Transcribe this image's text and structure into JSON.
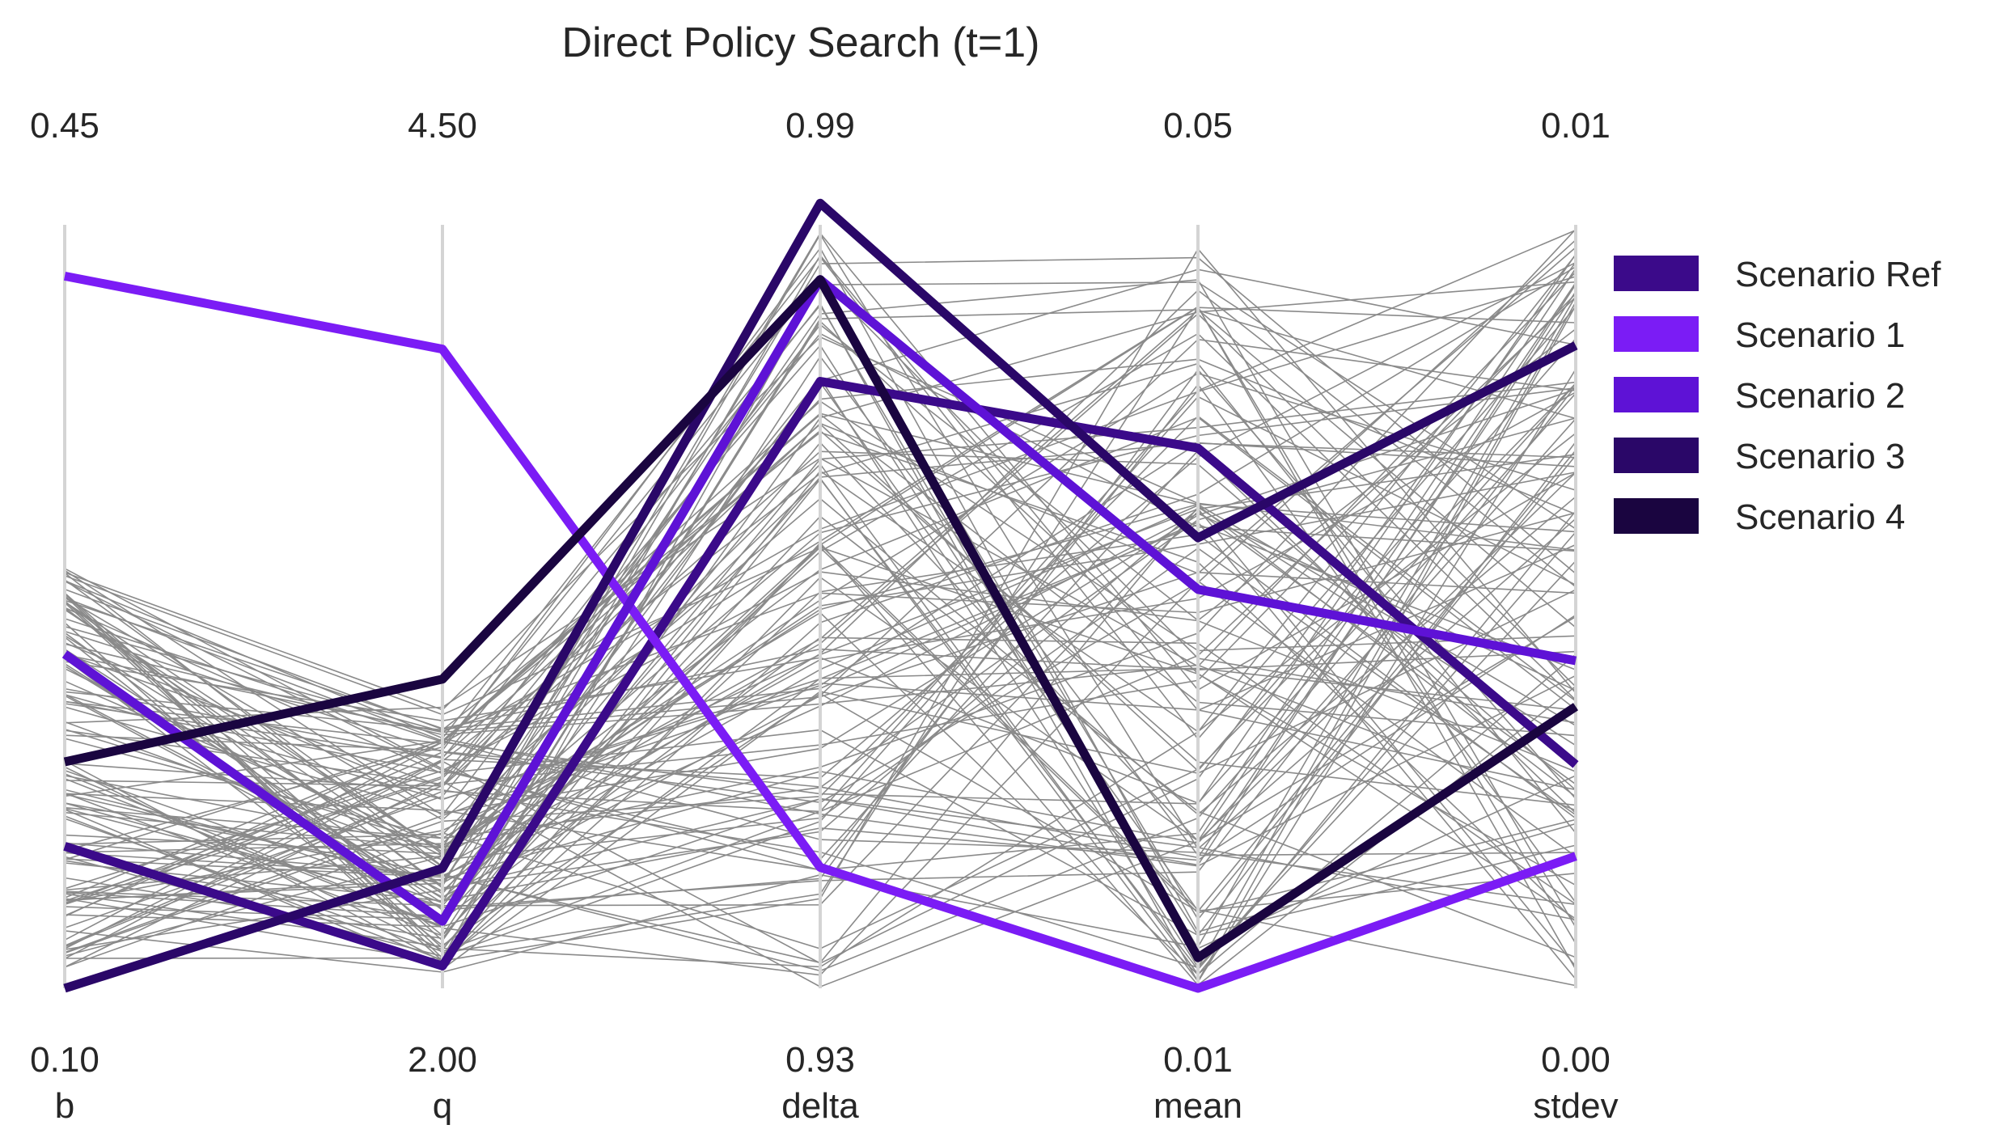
{
  "chart_data": {
    "type": "parallel_coordinates",
    "title": "Direct Policy Search (t=1)",
    "axes": [
      {
        "name": "b",
        "min": "0.10",
        "max": "0.45",
        "lo": 0.1,
        "hi": 0.45
      },
      {
        "name": "q",
        "min": "2.00",
        "max": "4.50",
        "lo": 2.0,
        "hi": 4.5
      },
      {
        "name": "delta",
        "min": "0.93",
        "max": "0.99",
        "lo": 0.93,
        "hi": 0.99
      },
      {
        "name": "mean",
        "min": "0.01",
        "max": "0.05",
        "lo": 0.01,
        "hi": 0.05
      },
      {
        "name": "stdev",
        "min": "0.00",
        "max": "0.01",
        "lo": 0.0,
        "hi": 0.01
      }
    ],
    "grid": false,
    "legend_position": "right",
    "background_color": "#8a8a8a",
    "highlighted": [
      {
        "name": "Scenario Ref",
        "color": "#3b0a8a",
        "values": [
          0.1651,
          2.0731,
          0.9777,
          0.0383,
          0.00293
        ]
      },
      {
        "name": "Scenario 1",
        "color": "#7b1cf5",
        "values": [
          0.4265,
          4.093,
          0.9395,
          0.01,
          0.00173
        ]
      },
      {
        "name": "Scenario 2",
        "color": "#5e12d6",
        "values": [
          0.2532,
          2.2196,
          0.9857,
          0.0309,
          0.00429
        ]
      },
      {
        "name": "Scenario 3",
        "color": "#2a0768",
        "values": [
          0.1,
          2.3929,
          0.9917,
          0.0336,
          0.00842
        ]
      },
      {
        "name": "Scenario 4",
        "color": "#1a0540",
        "values": [
          0.2038,
          3.0122,
          0.9857,
          0.0116,
          0.00369
        ]
      }
    ]
  }
}
